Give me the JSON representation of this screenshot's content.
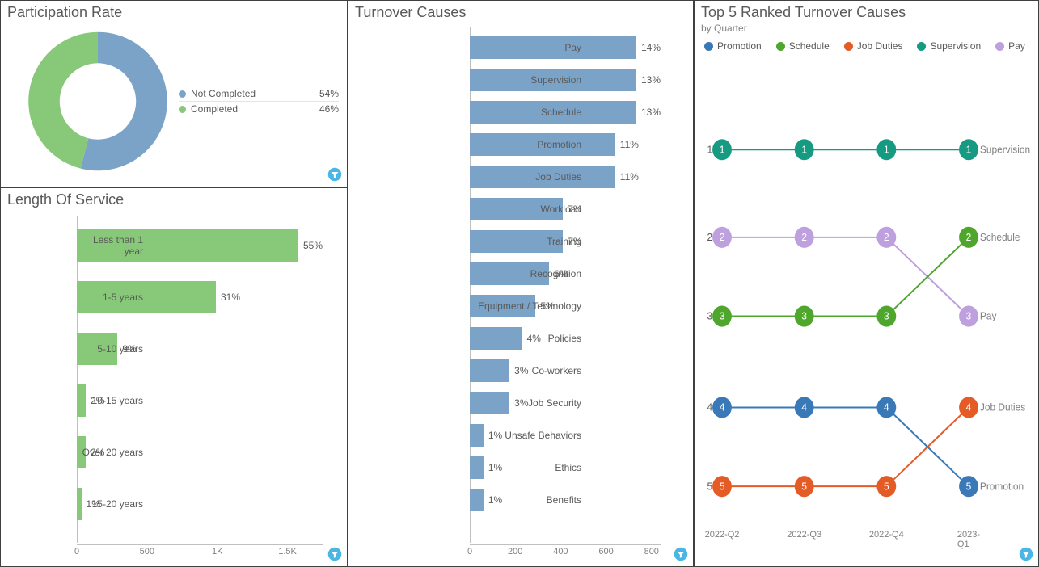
{
  "colors": {
    "panel_border": "#404040",
    "text": "#595959",
    "subtext": "#808080",
    "filter_icon": "#49b6e6"
  },
  "participation": {
    "title": "Participation Rate",
    "type": "donut",
    "slices": [
      {
        "label": "Not Completed",
        "value": 54,
        "display": "54%",
        "color": "#7ba3c7"
      },
      {
        "label": "Completed",
        "value": 46,
        "display": "46%",
        "color": "#88c979"
      }
    ],
    "inner_radius_pct": 55,
    "start_angle_deg": 0
  },
  "length_of_service": {
    "title": "Length Of Service",
    "type": "bar_horizontal",
    "bar_color": "#88c979",
    "label_fontsize": 12,
    "axis": {
      "min": 0,
      "max": 1750,
      "ticks": [
        0,
        500,
        1000,
        1500
      ],
      "tick_labels": [
        "0",
        "500",
        "1K",
        "1.5K"
      ]
    },
    "rows": [
      {
        "label": "Less than 1 year",
        "value": 1750,
        "display": "55%"
      },
      {
        "label": "1-5 years",
        "value": 990,
        "display": "31%"
      },
      {
        "label": "5-10 years",
        "value": 290,
        "display": "9%"
      },
      {
        "label": "10-15 years",
        "value": 64,
        "display": "2%"
      },
      {
        "label": "Over 20 years",
        "value": 64,
        "display": "2%"
      },
      {
        "label": "15-20 years",
        "value": 32,
        "display": "1%"
      }
    ]
  },
  "turnover": {
    "title": "Turnover Causes",
    "type": "bar_horizontal",
    "bar_color": "#7ba3c7",
    "label_fontsize": 12,
    "axis": {
      "min": 0,
      "max": 840,
      "ticks": [
        0,
        200,
        400,
        600,
        800
      ],
      "tick_labels": [
        "0",
        "200",
        "400",
        "600",
        "800"
      ]
    },
    "rows": [
      {
        "label": "Pay",
        "value": 810,
        "display": "14%"
      },
      {
        "label": "Supervision",
        "value": 760,
        "display": "13%"
      },
      {
        "label": "Schedule",
        "value": 760,
        "display": "13%"
      },
      {
        "label": "Promotion",
        "value": 640,
        "display": "11%"
      },
      {
        "label": "Job Duties",
        "value": 640,
        "display": "11%"
      },
      {
        "label": "Workload",
        "value": 410,
        "display": "7%"
      },
      {
        "label": "Training",
        "value": 410,
        "display": "7%"
      },
      {
        "label": "Recognition",
        "value": 350,
        "display": "6%"
      },
      {
        "label": "Equipment / Technology",
        "value": 290,
        "display": "5%"
      },
      {
        "label": "Policies",
        "value": 230,
        "display": "4%"
      },
      {
        "label": "Co-workers",
        "value": 175,
        "display": "3%"
      },
      {
        "label": "Job Security",
        "value": 175,
        "display": "3%"
      },
      {
        "label": "Unsafe Behaviors",
        "value": 60,
        "display": "1%"
      },
      {
        "label": "Ethics",
        "value": 60,
        "display": "1%"
      },
      {
        "label": "Benefits",
        "value": 60,
        "display": "1%"
      }
    ]
  },
  "bump": {
    "title": "Top 5 Ranked Turnover Causes",
    "subtitle": "by Quarter",
    "type": "bump",
    "x_categories": [
      "2022-Q2",
      "2022-Q3",
      "2022-Q4",
      "2023-Q1"
    ],
    "y_ranks": [
      1,
      2,
      3,
      4,
      5
    ],
    "node_radius": 12,
    "line_width": 2,
    "legend": [
      {
        "name": "Promotion",
        "color": "#3a79b7"
      },
      {
        "name": "Schedule",
        "color": "#4fa62d"
      },
      {
        "name": "Job Duties",
        "color": "#e55b26"
      },
      {
        "name": "Supervision",
        "color": "#169b82"
      },
      {
        "name": "Pay",
        "color": "#bda0dd"
      }
    ],
    "series": [
      {
        "name": "Supervision",
        "color": "#169b82",
        "ranks": [
          1,
          1,
          1,
          1
        ],
        "end_label": "Supervision"
      },
      {
        "name": "Pay",
        "color": "#bda0dd",
        "ranks": [
          2,
          2,
          2,
          3
        ],
        "end_label": "Pay"
      },
      {
        "name": "Schedule",
        "color": "#4fa62d",
        "ranks": [
          3,
          3,
          3,
          2
        ],
        "end_label": "Schedule"
      },
      {
        "name": "Promotion",
        "color": "#3a79b7",
        "ranks": [
          4,
          4,
          4,
          5
        ],
        "end_label": "Promotion"
      },
      {
        "name": "Job Duties",
        "color": "#e55b26",
        "ranks": [
          5,
          5,
          5,
          4
        ],
        "end_label": "Job Duties"
      }
    ]
  }
}
